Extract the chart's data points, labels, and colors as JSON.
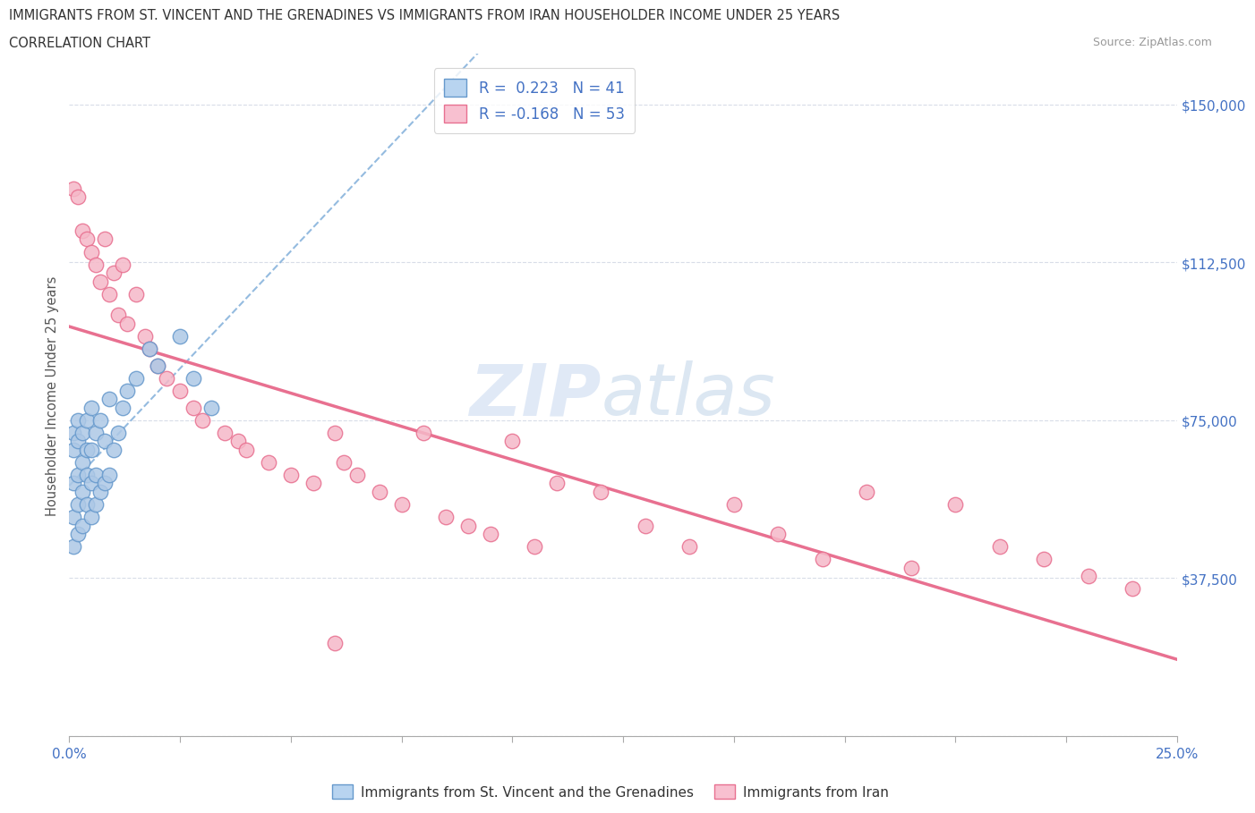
{
  "title_line1": "IMMIGRANTS FROM ST. VINCENT AND THE GRENADINES VS IMMIGRANTS FROM IRAN HOUSEHOLDER INCOME UNDER 25 YEARS",
  "title_line2": "CORRELATION CHART",
  "source_text": "Source: ZipAtlas.com",
  "ylabel": "Householder Income Under 25 years",
  "watermark_zip": "ZIP",
  "watermark_atlas": "atlas",
  "r_vincent": 0.223,
  "n_vincent": 41,
  "r_iran": -0.168,
  "n_iran": 53,
  "xlim": [
    0,
    0.25
  ],
  "ylim": [
    0,
    162000
  ],
  "yticks": [
    0,
    37500,
    75000,
    112500,
    150000
  ],
  "ytick_labels": [
    "",
    "$37,500",
    "$75,000",
    "$112,500",
    "$150,000"
  ],
  "xticks": [
    0.0,
    0.025,
    0.05,
    0.075,
    0.1,
    0.125,
    0.15,
    0.175,
    0.2,
    0.225,
    0.25
  ],
  "color_vincent_fill": "#adc8e6",
  "color_vincent_edge": "#6699cc",
  "color_iran_fill": "#f5b8c8",
  "color_iran_edge": "#e87090",
  "trend_vincent_color": "#7aaad8",
  "trend_iran_color": "#e87090",
  "tick_label_color": "#4472c4",
  "grid_color": "#d8dde8",
  "background_color": "#ffffff",
  "legend_vincent_fill": "#b8d4f0",
  "legend_vincent_edge": "#6699cc",
  "legend_iran_fill": "#f8c0d0",
  "legend_iran_edge": "#e87090",
  "legend_label_vincent": "Immigrants from St. Vincent and the Grenadines",
  "legend_label_iran": "Immigrants from Iran",
  "vincent_x": [
    0.001,
    0.001,
    0.001,
    0.001,
    0.001,
    0.002,
    0.002,
    0.002,
    0.002,
    0.002,
    0.003,
    0.003,
    0.003,
    0.003,
    0.004,
    0.004,
    0.004,
    0.004,
    0.005,
    0.005,
    0.005,
    0.005,
    0.006,
    0.006,
    0.006,
    0.007,
    0.007,
    0.008,
    0.008,
    0.009,
    0.009,
    0.01,
    0.011,
    0.012,
    0.013,
    0.015,
    0.018,
    0.02,
    0.025,
    0.028,
    0.032
  ],
  "vincent_y": [
    45000,
    52000,
    60000,
    68000,
    72000,
    48000,
    55000,
    62000,
    70000,
    75000,
    50000,
    58000,
    65000,
    72000,
    55000,
    62000,
    68000,
    75000,
    52000,
    60000,
    68000,
    78000,
    55000,
    62000,
    72000,
    58000,
    75000,
    60000,
    70000,
    62000,
    80000,
    68000,
    72000,
    78000,
    82000,
    85000,
    92000,
    88000,
    95000,
    85000,
    78000
  ],
  "iran_x": [
    0.001,
    0.002,
    0.003,
    0.004,
    0.005,
    0.006,
    0.007,
    0.008,
    0.009,
    0.01,
    0.011,
    0.012,
    0.013,
    0.015,
    0.017,
    0.018,
    0.02,
    0.022,
    0.025,
    0.028,
    0.03,
    0.035,
    0.038,
    0.04,
    0.045,
    0.05,
    0.055,
    0.06,
    0.062,
    0.065,
    0.07,
    0.075,
    0.08,
    0.085,
    0.09,
    0.095,
    0.1,
    0.105,
    0.11,
    0.12,
    0.13,
    0.14,
    0.15,
    0.16,
    0.17,
    0.18,
    0.19,
    0.2,
    0.21,
    0.22,
    0.23,
    0.24,
    0.06
  ],
  "iran_y": [
    130000,
    128000,
    120000,
    118000,
    115000,
    112000,
    108000,
    118000,
    105000,
    110000,
    100000,
    112000,
    98000,
    105000,
    95000,
    92000,
    88000,
    85000,
    82000,
    78000,
    75000,
    72000,
    70000,
    68000,
    65000,
    62000,
    60000,
    72000,
    65000,
    62000,
    58000,
    55000,
    72000,
    52000,
    50000,
    48000,
    70000,
    45000,
    60000,
    58000,
    50000,
    45000,
    55000,
    48000,
    42000,
    58000,
    40000,
    55000,
    45000,
    42000,
    38000,
    35000,
    22000
  ]
}
